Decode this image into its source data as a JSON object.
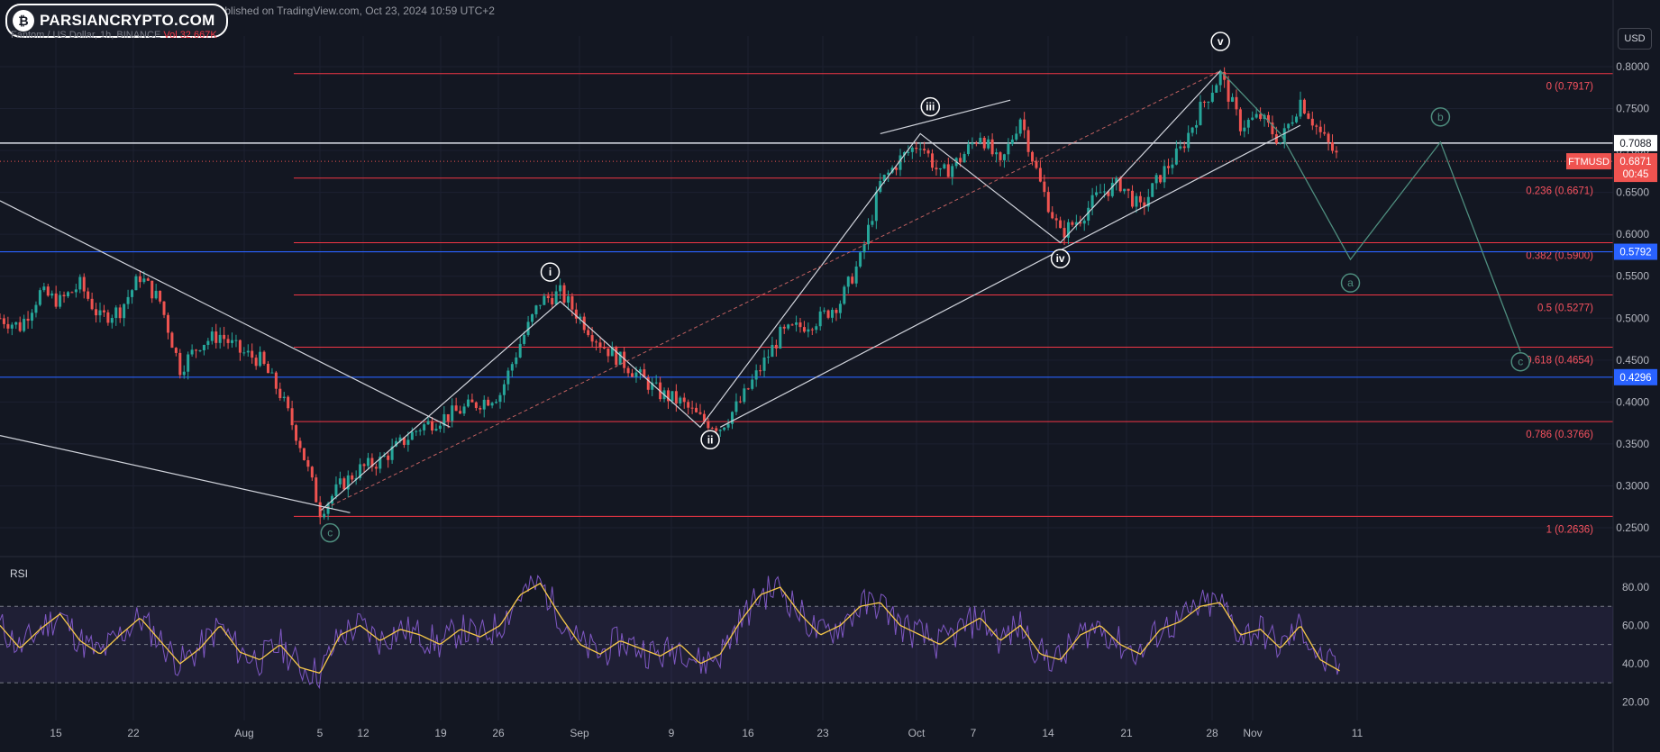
{
  "header": {
    "logo_text": "PARSIANCRYPTO.COM",
    "published_text": "published on TradingView.com, Oct 23, 2024 10:59 UTC+2",
    "symbol_text": "Fantom / US Dollar, 1h, BINANCE",
    "volume_text": "Vol 32.667K",
    "currency_button": "USD"
  },
  "indicator": {
    "label": "RSI"
  },
  "colors": {
    "background": "#131722",
    "candle_up": "#26a69a",
    "candle_down": "#ef5350",
    "fib_line": "#f23645",
    "fib_label": "#f7525f",
    "wave_line": "#d1d4dc",
    "projection": "#4e8d7e",
    "blue_level": "#2962ff",
    "rsi_line": "#7e57c2",
    "rsi_ma": "#f7c948"
  },
  "chart_data": [
    {
      "type": "candlestick",
      "x_ticks": [
        "15",
        "22",
        "Aug",
        "5",
        "12",
        "19",
        "26",
        "Sep",
        "9",
        "16",
        "23",
        "Oct",
        "7",
        "14",
        "21",
        "28",
        "Nov",
        "11"
      ],
      "y_ticks": [
        "0.8000",
        "0.7500",
        "0.7000",
        "0.6500",
        "0.6000",
        "0.5500",
        "0.5000",
        "0.4500",
        "0.4000",
        "0.3500",
        "0.3000",
        "0.2500"
      ],
      "ylim": [
        0.235,
        0.815
      ],
      "price_path": [
        [
          0,
          0.5
        ],
        [
          1,
          0.49
        ],
        [
          2,
          0.53
        ],
        [
          3,
          0.52
        ],
        [
          4,
          0.54
        ],
        [
          5,
          0.5
        ],
        [
          6,
          0.51
        ],
        [
          7,
          0.55
        ],
        [
          8,
          0.52
        ],
        [
          9,
          0.44
        ],
        [
          10,
          0.47
        ],
        [
          11,
          0.48
        ],
        [
          12,
          0.46
        ],
        [
          13,
          0.45
        ],
        [
          14,
          0.41
        ],
        [
          15,
          0.35
        ],
        [
          16,
          0.27
        ],
        [
          17,
          0.3
        ],
        [
          18,
          0.32
        ],
        [
          19,
          0.33
        ],
        [
          20,
          0.35
        ],
        [
          21,
          0.37
        ],
        [
          22,
          0.38
        ],
        [
          23,
          0.39
        ],
        [
          24,
          0.4
        ],
        [
          25,
          0.41
        ],
        [
          26,
          0.47
        ],
        [
          27,
          0.52
        ],
        [
          28,
          0.53
        ],
        [
          29,
          0.5
        ],
        [
          30,
          0.47
        ],
        [
          31,
          0.45
        ],
        [
          32,
          0.43
        ],
        [
          33,
          0.41
        ],
        [
          34,
          0.4
        ],
        [
          35,
          0.38
        ],
        [
          36,
          0.37
        ],
        [
          37,
          0.4
        ],
        [
          38,
          0.44
        ],
        [
          39,
          0.48
        ],
        [
          40,
          0.49
        ],
        [
          41,
          0.5
        ],
        [
          42,
          0.52
        ],
        [
          43,
          0.57
        ],
        [
          44,
          0.66
        ],
        [
          45,
          0.69
        ],
        [
          46,
          0.71
        ],
        [
          47,
          0.67
        ],
        [
          48,
          0.69
        ],
        [
          49,
          0.72
        ],
        [
          50,
          0.68
        ],
        [
          51,
          0.74
        ],
        [
          52,
          0.66
        ],
        [
          53,
          0.6
        ],
        [
          54,
          0.62
        ],
        [
          55,
          0.65
        ],
        [
          56,
          0.66
        ],
        [
          57,
          0.63
        ],
        [
          58,
          0.67
        ],
        [
          59,
          0.7
        ],
        [
          60,
          0.75
        ],
        [
          61,
          0.79
        ],
        [
          62,
          0.73
        ],
        [
          63,
          0.74
        ],
        [
          64,
          0.71
        ],
        [
          65,
          0.76
        ],
        [
          66,
          0.72
        ],
        [
          67,
          0.687
        ]
      ],
      "price_end_day": 67,
      "ohlc_day_range": [
        0,
        100
      ],
      "current_price": "0.6871",
      "countdown": "00:45",
      "symbol_badge": "FTMUSD",
      "levels": [
        {
          "label": "0 (0.7917)",
          "value": 0.7917,
          "style": "fib"
        },
        {
          "label": "0.236 (0.6671)",
          "value": 0.6671,
          "style": "fib"
        },
        {
          "label": "0.382 (0.5900)",
          "value": 0.59,
          "style": "fib"
        },
        {
          "label": "0.5 (0.5277)",
          "value": 0.5277,
          "style": "fib"
        },
        {
          "label": "0.618 (0.4654)",
          "value": 0.4654,
          "style": "fib"
        },
        {
          "label": "0.786 (0.3766)",
          "value": 0.3766,
          "style": "fib"
        },
        {
          "label": "1 (0.2636)",
          "value": 0.2636,
          "style": "fib"
        },
        {
          "label": "0.7088",
          "value": 0.7088,
          "style": "white"
        },
        {
          "label": "0.5792",
          "value": 0.5792,
          "style": "blue"
        },
        {
          "label": "0.4296",
          "value": 0.4296,
          "style": "blue"
        }
      ],
      "wave_labels": [
        {
          "text": "i",
          "day": 27.5,
          "price": 0.555,
          "kind": "impulse"
        },
        {
          "text": "ii",
          "day": 35.5,
          "price": 0.355,
          "kind": "impulse"
        },
        {
          "text": "iii",
          "day": 46.5,
          "price": 0.752,
          "kind": "impulse"
        },
        {
          "text": "iv",
          "day": 53.0,
          "price": 0.571,
          "kind": "impulse"
        },
        {
          "text": "v",
          "day": 61.0,
          "price": 0.83,
          "kind": "impulse"
        },
        {
          "text": "c",
          "day": 16.5,
          "price": 0.244,
          "kind": "correction"
        },
        {
          "text": "a",
          "day": 67.5,
          "price": 0.542,
          "kind": "correction"
        },
        {
          "text": "b",
          "day": 72.0,
          "price": 0.74,
          "kind": "correction"
        },
        {
          "text": "c",
          "day": 76.0,
          "price": 0.448,
          "kind": "correction"
        }
      ],
      "wave_path": [
        [
          16,
          0.27
        ],
        [
          28,
          0.52
        ],
        [
          35,
          0.37
        ],
        [
          46,
          0.72
        ],
        [
          53,
          0.59
        ],
        [
          61,
          0.795
        ]
      ],
      "projection_path": [
        [
          61,
          0.795
        ],
        [
          64,
          0.72
        ],
        [
          67.5,
          0.57
        ],
        [
          72,
          0.71
        ],
        [
          76,
          0.46
        ]
      ]
    },
    {
      "type": "line",
      "title": "RSI",
      "y_ticks": [
        "80.00",
        "60.00",
        "40.00",
        "20.00"
      ],
      "ylim": [
        15,
        88
      ],
      "bands": [
        70,
        50,
        30
      ],
      "rsi_path": [
        [
          0,
          60
        ],
        [
          1,
          48
        ],
        [
          2,
          58
        ],
        [
          3,
          66
        ],
        [
          4,
          52
        ],
        [
          5,
          45
        ],
        [
          6,
          55
        ],
        [
          7,
          64
        ],
        [
          8,
          52
        ],
        [
          9,
          40
        ],
        [
          10,
          48
        ],
        [
          11,
          60
        ],
        [
          12,
          46
        ],
        [
          13,
          42
        ],
        [
          14,
          50
        ],
        [
          15,
          38
        ],
        [
          16,
          35
        ],
        [
          17,
          55
        ],
        [
          18,
          60
        ],
        [
          19,
          52
        ],
        [
          20,
          58
        ],
        [
          21,
          55
        ],
        [
          22,
          50
        ],
        [
          23,
          58
        ],
        [
          24,
          54
        ],
        [
          25,
          60
        ],
        [
          26,
          76
        ],
        [
          27,
          82
        ],
        [
          28,
          65
        ],
        [
          29,
          50
        ],
        [
          30,
          45
        ],
        [
          31,
          52
        ],
        [
          32,
          48
        ],
        [
          33,
          44
        ],
        [
          34,
          50
        ],
        [
          35,
          40
        ],
        [
          36,
          45
        ],
        [
          37,
          62
        ],
        [
          38,
          76
        ],
        [
          39,
          80
        ],
        [
          40,
          66
        ],
        [
          41,
          55
        ],
        [
          42,
          60
        ],
        [
          43,
          70
        ],
        [
          44,
          72
        ],
        [
          45,
          60
        ],
        [
          46,
          55
        ],
        [
          47,
          50
        ],
        [
          48,
          58
        ],
        [
          49,
          64
        ],
        [
          50,
          52
        ],
        [
          51,
          60
        ],
        [
          52,
          45
        ],
        [
          53,
          42
        ],
        [
          54,
          55
        ],
        [
          55,
          60
        ],
        [
          56,
          50
        ],
        [
          57,
          45
        ],
        [
          58,
          58
        ],
        [
          59,
          62
        ],
        [
          60,
          70
        ],
        [
          61,
          72
        ],
        [
          62,
          55
        ],
        [
          63,
          58
        ],
        [
          64,
          48
        ],
        [
          65,
          60
        ],
        [
          66,
          42
        ],
        [
          67,
          36
        ]
      ]
    }
  ]
}
